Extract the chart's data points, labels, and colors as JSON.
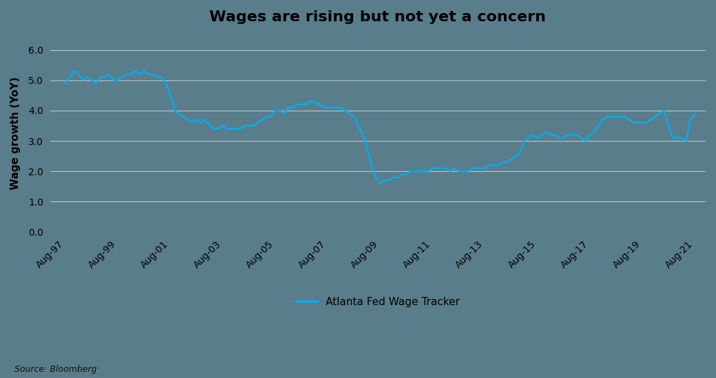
{
  "title": "Wages are rising but not yet a concern",
  "ylabel": "Wage growth (YoY)",
  "source": "Source: Bloomberg",
  "legend_label": "Atlanta Fed Wage Tracker",
  "line_color": "#00AEEF",
  "background_color": "#5a7d8c",
  "grid_color": "#c8d0d4",
  "text_color": "#000000",
  "ylim": [
    0.0,
    6.5
  ],
  "yticks": [
    0.0,
    1.0,
    2.0,
    3.0,
    4.0,
    5.0,
    6.0
  ],
  "xtick_labels": [
    "Aug-97",
    "Aug-99",
    "Aug-01",
    "Aug-03",
    "Aug-05",
    "Aug-07",
    "Aug-09",
    "Aug-11",
    "Aug-13",
    "Aug-15",
    "Aug-17",
    "Aug-19",
    "Aug-21"
  ],
  "data": {
    "dates_numeric": [
      1997.583,
      1997.75,
      1997.917,
      1998.083,
      1998.25,
      1998.417,
      1998.583,
      1998.75,
      1998.917,
      1999.083,
      1999.25,
      1999.417,
      1999.583,
      1999.75,
      1999.917,
      2000.083,
      2000.25,
      2000.417,
      2000.583,
      2000.75,
      2000.917,
      2001.083,
      2001.25,
      2001.417,
      2001.583,
      2001.75,
      2001.917,
      2002.083,
      2002.25,
      2002.417,
      2002.583,
      2002.75,
      2002.917,
      2003.083,
      2003.25,
      2003.417,
      2003.583,
      2003.75,
      2003.917,
      2004.083,
      2004.25,
      2004.417,
      2004.583,
      2004.75,
      2004.917,
      2005.083,
      2005.25,
      2005.417,
      2005.583,
      2005.75,
      2005.917,
      2006.083,
      2006.25,
      2006.417,
      2006.583,
      2006.75,
      2006.917,
      2007.083,
      2007.25,
      2007.417,
      2007.583,
      2007.75,
      2007.917,
      2008.083,
      2008.25,
      2008.417,
      2008.583,
      2008.75,
      2008.917,
      2009.083,
      2009.25,
      2009.417,
      2009.583,
      2009.75,
      2009.917,
      2010.083,
      2010.25,
      2010.417,
      2010.583,
      2010.75,
      2010.917,
      2011.083,
      2011.25,
      2011.417,
      2011.583,
      2011.75,
      2011.917,
      2012.083,
      2012.25,
      2012.417,
      2012.583,
      2012.75,
      2012.917,
      2013.083,
      2013.25,
      2013.417,
      2013.583,
      2013.75,
      2013.917,
      2014.083,
      2014.25,
      2014.417,
      2014.583,
      2014.75,
      2014.917,
      2015.083,
      2015.25,
      2015.417,
      2015.583,
      2015.75,
      2015.917,
      2016.083,
      2016.25,
      2016.417,
      2016.583,
      2016.75,
      2016.917,
      2017.083,
      2017.25,
      2017.417,
      2017.583,
      2017.75,
      2017.917,
      2018.083,
      2018.25,
      2018.417,
      2018.583,
      2018.75,
      2018.917,
      2019.083,
      2019.25,
      2019.417,
      2019.583,
      2019.75,
      2019.917,
      2020.083,
      2020.25,
      2020.417,
      2020.583,
      2020.75,
      2020.917,
      2021.083,
      2021.25,
      2021.417,
      2021.583
    ],
    "values": [
      4.9,
      5.1,
      5.3,
      5.2,
      5.0,
      5.1,
      5.0,
      4.9,
      5.1,
      5.1,
      5.2,
      5.0,
      5.0,
      5.1,
      5.2,
      5.2,
      5.3,
      5.2,
      5.3,
      5.2,
      5.2,
      5.1,
      5.1,
      4.9,
      4.5,
      4.0,
      3.9,
      3.8,
      3.7,
      3.6,
      3.7,
      3.6,
      3.7,
      3.5,
      3.4,
      3.4,
      3.5,
      3.4,
      3.4,
      3.4,
      3.4,
      3.5,
      3.5,
      3.5,
      3.6,
      3.7,
      3.8,
      3.8,
      4.0,
      4.0,
      3.9,
      4.1,
      4.1,
      4.2,
      4.2,
      4.2,
      4.3,
      4.3,
      4.2,
      4.1,
      4.1,
      4.1,
      4.1,
      4.1,
      4.0,
      3.9,
      3.8,
      3.5,
      3.2,
      2.8,
      2.2,
      1.8,
      1.6,
      1.7,
      1.7,
      1.8,
      1.8,
      1.9,
      1.9,
      2.0,
      2.0,
      2.0,
      2.0,
      2.0,
      2.1,
      2.1,
      2.1,
      2.1,
      2.0,
      2.1,
      2.0,
      2.0,
      2.0,
      2.1,
      2.1,
      2.1,
      2.1,
      2.2,
      2.2,
      2.2,
      2.3,
      2.3,
      2.4,
      2.5,
      2.6,
      3.0,
      3.1,
      3.2,
      3.1,
      3.2,
      3.3,
      3.2,
      3.2,
      3.1,
      3.1,
      3.2,
      3.2,
      3.2,
      3.1,
      3.0,
      3.2,
      3.3,
      3.5,
      3.7,
      3.8,
      3.8,
      3.8,
      3.8,
      3.8,
      3.7,
      3.6,
      3.6,
      3.6,
      3.6,
      3.7,
      3.8,
      3.9,
      4.0,
      3.5,
      3.1,
      3.1,
      3.1,
      3.0,
      3.7,
      3.9
    ]
  }
}
